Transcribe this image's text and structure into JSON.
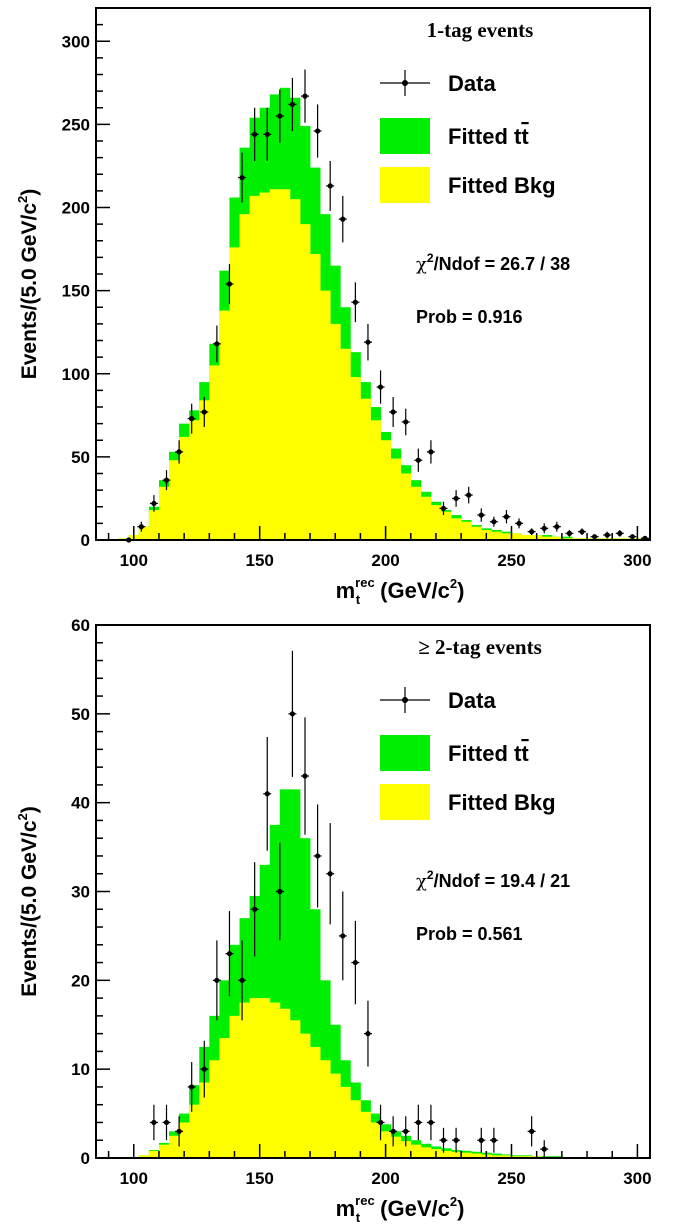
{
  "chart_data": [
    {
      "type": "bar",
      "title": "1-tag events",
      "xlabel_main": "m",
      "xlabel_sub": "t",
      "xlabel_sup": "rec",
      "xlabel_unit": "(GeV/c",
      "xlabel_unit_sup": "2",
      "xlabel_unit_close": ")",
      "ylabel_main": "Events/(5.0 GeV/c",
      "ylabel_sup": "2",
      "ylabel_close": ")",
      "xlim": [
        85,
        305
      ],
      "ylim": [
        0,
        320
      ],
      "xticks": [
        100,
        150,
        200,
        250,
        300
      ],
      "yticks": [
        0,
        50,
        100,
        150,
        200,
        250,
        300
      ],
      "grid": false,
      "legend": [
        {
          "label": "Data",
          "kind": "marker"
        },
        {
          "label": "Fitted t",
          "label_bar": "t",
          "kind": "box",
          "color": "#00ee00"
        },
        {
          "label": "Fitted Bkg",
          "kind": "box",
          "color": "#ffff00"
        }
      ],
      "annotations": {
        "chi2_symbol": "χ",
        "chi2_sup": "2",
        "chi2_text": "/Ndof = 26.7 / 38",
        "prob": "Prob = 0.916"
      },
      "bin_edges_start": 90,
      "bin_width": 4,
      "bkg": [
        0,
        1,
        3,
        8,
        18,
        32,
        48,
        62,
        72,
        84,
        105,
        138,
        176,
        196,
        207,
        209,
        211,
        211,
        205,
        190,
        172,
        150,
        130,
        115,
        98,
        85,
        72,
        60,
        49,
        40,
        32,
        26,
        21,
        17,
        13,
        11,
        8,
        6,
        5,
        4,
        4,
        3,
        3,
        2,
        2,
        1,
        1,
        1,
        1,
        1,
        1,
        1,
        1,
        1
      ],
      "total": [
        0,
        1,
        3,
        8,
        20,
        36,
        53,
        70,
        78,
        95,
        118,
        162,
        206,
        236,
        254,
        260,
        268,
        272,
        266,
        249,
        224,
        196,
        165,
        140,
        113,
        95,
        80,
        65,
        55,
        45,
        36,
        29,
        23,
        18,
        15,
        12,
        9,
        7,
        6,
        5,
        4,
        3,
        3,
        3,
        2,
        2,
        1,
        1,
        1,
        1,
        1,
        1,
        1,
        1
      ],
      "data_points": [
        {
          "x": 98,
          "y": 0,
          "err": 1
        },
        {
          "x": 103,
          "y": 8,
          "err": 3
        },
        {
          "x": 108,
          "y": 22,
          "err": 5
        },
        {
          "x": 113,
          "y": 36,
          "err": 6
        },
        {
          "x": 118,
          "y": 53,
          "err": 7
        },
        {
          "x": 123,
          "y": 73,
          "err": 9
        },
        {
          "x": 128,
          "y": 77,
          "err": 9
        },
        {
          "x": 133,
          "y": 118,
          "err": 11
        },
        {
          "x": 138,
          "y": 154,
          "err": 12
        },
        {
          "x": 143,
          "y": 218,
          "err": 15
        },
        {
          "x": 148,
          "y": 244,
          "err": 16
        },
        {
          "x": 153,
          "y": 244,
          "err": 16
        },
        {
          "x": 158,
          "y": 255,
          "err": 16
        },
        {
          "x": 163,
          "y": 262,
          "err": 16
        },
        {
          "x": 168,
          "y": 267,
          "err": 16
        },
        {
          "x": 173,
          "y": 246,
          "err": 16
        },
        {
          "x": 178,
          "y": 213,
          "err": 15
        },
        {
          "x": 183,
          "y": 193,
          "err": 14
        },
        {
          "x": 188,
          "y": 143,
          "err": 12
        },
        {
          "x": 193,
          "y": 119,
          "err": 11
        },
        {
          "x": 198,
          "y": 92,
          "err": 10
        },
        {
          "x": 203,
          "y": 77,
          "err": 9
        },
        {
          "x": 208,
          "y": 71,
          "err": 8
        },
        {
          "x": 213,
          "y": 48,
          "err": 7
        },
        {
          "x": 218,
          "y": 53,
          "err": 7
        },
        {
          "x": 223,
          "y": 19,
          "err": 4
        },
        {
          "x": 228,
          "y": 25,
          "err": 5
        },
        {
          "x": 233,
          "y": 27,
          "err": 5
        },
        {
          "x": 238,
          "y": 15,
          "err": 4
        },
        {
          "x": 243,
          "y": 11,
          "err": 3
        },
        {
          "x": 248,
          "y": 14,
          "err": 4
        },
        {
          "x": 253,
          "y": 10,
          "err": 3
        },
        {
          "x": 258,
          "y": 5,
          "err": 2
        },
        {
          "x": 263,
          "y": 7,
          "err": 3
        },
        {
          "x": 268,
          "y": 8,
          "err": 3
        },
        {
          "x": 273,
          "y": 4,
          "err": 2
        },
        {
          "x": 278,
          "y": 5,
          "err": 2
        },
        {
          "x": 283,
          "y": 2,
          "err": 1
        },
        {
          "x": 288,
          "y": 3,
          "err": 2
        },
        {
          "x": 293,
          "y": 4,
          "err": 2
        },
        {
          "x": 298,
          "y": 2,
          "err": 1
        },
        {
          "x": 303,
          "y": 1,
          "err": 1
        }
      ]
    },
    {
      "type": "bar",
      "title": "≥ 2-tag events",
      "xlabel_main": "m",
      "xlabel_sub": "t",
      "xlabel_sup": "rec",
      "xlabel_unit": "(GeV/c",
      "xlabel_unit_sup": "2",
      "xlabel_unit_close": ")",
      "ylabel_main": "Events/(5.0 GeV/c",
      "ylabel_sup": "2",
      "ylabel_close": ")",
      "xlim": [
        85,
        305
      ],
      "ylim": [
        0,
        60
      ],
      "xticks": [
        100,
        150,
        200,
        250,
        300
      ],
      "yticks": [
        0,
        10,
        20,
        30,
        40,
        50,
        60
      ],
      "grid": false,
      "legend": [
        {
          "label": "Data",
          "kind": "marker"
        },
        {
          "label": "Fitted t",
          "label_bar": "t",
          "kind": "box",
          "color": "#00ee00"
        },
        {
          "label": "Fitted Bkg",
          "kind": "box",
          "color": "#ffff00"
        }
      ],
      "annotations": {
        "chi2_symbol": "χ",
        "chi2_sup": "2",
        "chi2_text": "/Ndof = 19.4 / 21",
        "prob": "Prob = 0.561"
      },
      "bin_edges_start": 90,
      "bin_width": 4,
      "bkg": [
        0,
        0,
        0,
        0.3,
        0.8,
        1.5,
        2.5,
        4.0,
        6.0,
        8.5,
        11,
        13.5,
        16,
        17.5,
        18,
        18,
        17.5,
        16.8,
        15.5,
        14,
        12.5,
        11,
        9.5,
        8.0,
        6.5,
        5.2,
        4.0,
        3.0,
        2.4,
        1.9,
        1.5,
        1.2,
        1.0,
        0.8,
        0.7,
        0.6,
        0.5,
        0.4,
        0.3,
        0.3,
        0.2,
        0.2,
        0.2,
        0.1,
        0.1,
        0.1,
        0.1,
        0.1,
        0.1,
        0.1,
        0.1,
        0.1,
        0.1,
        0.1
      ],
      "total": [
        0,
        0,
        0,
        0.3,
        0.9,
        1.7,
        3.0,
        5.0,
        8.2,
        12.5,
        16,
        20,
        24,
        27,
        29.5,
        33,
        37.5,
        41.5,
        41.5,
        36,
        28,
        20,
        15,
        11,
        8.5,
        6.5,
        5.0,
        3.8,
        3.0,
        2.5,
        2.0,
        1.6,
        1.3,
        1.1,
        0.9,
        0.8,
        0.7,
        0.6,
        0.5,
        0.4,
        0.3,
        0.3,
        0.2,
        0.2,
        0.2,
        0.1,
        0.1,
        0.1,
        0.1,
        0.1,
        0.1,
        0.1,
        0.1,
        0.1
      ],
      "data_points": [
        {
          "x": 108,
          "y": 4,
          "err": 2
        },
        {
          "x": 113,
          "y": 4,
          "err": 2
        },
        {
          "x": 118,
          "y": 3,
          "err": 1.7
        },
        {
          "x": 123,
          "y": 8,
          "err": 2.8
        },
        {
          "x": 128,
          "y": 10,
          "err": 3.2
        },
        {
          "x": 133,
          "y": 20,
          "err": 4.5
        },
        {
          "x": 138,
          "y": 23,
          "err": 4.8
        },
        {
          "x": 143,
          "y": 20,
          "err": 4.5
        },
        {
          "x": 148,
          "y": 28,
          "err": 5.3
        },
        {
          "x": 153,
          "y": 41,
          "err": 6.4
        },
        {
          "x": 158,
          "y": 30,
          "err": 5.5
        },
        {
          "x": 163,
          "y": 50,
          "err": 7.1
        },
        {
          "x": 168,
          "y": 43,
          "err": 6.6
        },
        {
          "x": 173,
          "y": 34,
          "err": 5.8
        },
        {
          "x": 178,
          "y": 32,
          "err": 5.7
        },
        {
          "x": 183,
          "y": 25,
          "err": 5
        },
        {
          "x": 188,
          "y": 22,
          "err": 4.7
        },
        {
          "x": 193,
          "y": 14,
          "err": 3.7
        },
        {
          "x": 198,
          "y": 4,
          "err": 2
        },
        {
          "x": 203,
          "y": 3,
          "err": 1.7
        },
        {
          "x": 208,
          "y": 3,
          "err": 1.7
        },
        {
          "x": 213,
          "y": 4,
          "err": 2
        },
        {
          "x": 218,
          "y": 4,
          "err": 2
        },
        {
          "x": 223,
          "y": 2,
          "err": 1.4
        },
        {
          "x": 228,
          "y": 2,
          "err": 1.4
        },
        {
          "x": 238,
          "y": 2,
          "err": 1.4
        },
        {
          "x": 243,
          "y": 2,
          "err": 1.4
        },
        {
          "x": 258,
          "y": 3,
          "err": 1.7
        },
        {
          "x": 263,
          "y": 1,
          "err": 1
        }
      ]
    }
  ]
}
